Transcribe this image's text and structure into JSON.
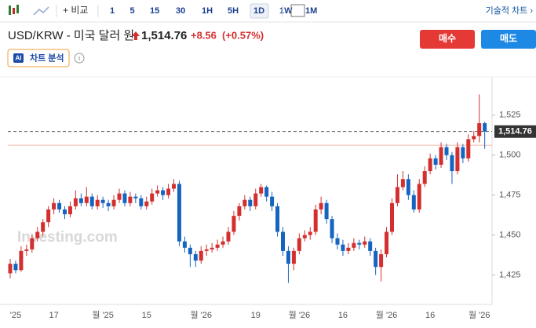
{
  "toolbar": {
    "compare": "+ 비교",
    "intervals": [
      "1",
      "5",
      "15",
      "30",
      "1H",
      "5H",
      "1D",
      "1W",
      "1M"
    ],
    "active_interval": "1D",
    "technical": "기술적 차트 ›"
  },
  "header": {
    "title": "USD/KRW - 미국 달러 원",
    "change": "+8.56",
    "change_pct": "(+0.57%)",
    "buy": "매수",
    "sell": "매도",
    "ai_badge": "AI",
    "analysis": "차트 분석"
  },
  "watermark": "Investing.com",
  "chart_data": {
    "type": "candlestick",
    "up_color": "#d32f2f",
    "down_color": "#1565c0",
    "ylim": [
      1408,
      1548
    ],
    "yticks": [
      {
        "value": 1425,
        "label": "1,425"
      },
      {
        "value": 1450,
        "label": "1,450"
      },
      {
        "value": 1475,
        "label": "1,475"
      },
      {
        "value": 1500,
        "label": "1,500"
      },
      {
        "value": 1525,
        "label": "1,525"
      }
    ],
    "last_price": {
      "value": 1514.76,
      "label": "1,514.76"
    },
    "prev_close": 1506.2,
    "categories": [
      null,
      "'25",
      null,
      null,
      null,
      null,
      null,
      null,
      "17",
      null,
      null,
      null,
      null,
      null,
      null,
      null,
      null,
      "월 '25",
      null,
      null,
      null,
      null,
      null,
      null,
      null,
      "15",
      null,
      null,
      null,
      null,
      null,
      null,
      null,
      null,
      null,
      "월 '26",
      null,
      null,
      null,
      null,
      null,
      null,
      null,
      null,
      null,
      "19",
      null,
      null,
      null,
      null,
      null,
      null,
      null,
      "월 '26",
      null,
      null,
      null,
      null,
      null,
      null,
      null,
      "16",
      null,
      null,
      null,
      null,
      null,
      null,
      null,
      "월 '26",
      null,
      null,
      null,
      null,
      null,
      null,
      null,
      "16",
      null,
      null,
      null,
      null,
      null,
      null,
      null,
      null,
      "월 '26",
      null
    ],
    "ohlc": [
      [
        1426,
        1435,
        1423,
        1432
      ],
      [
        1432,
        1434,
        1426,
        1428
      ],
      [
        1428,
        1443,
        1427,
        1440
      ],
      [
        1440,
        1444,
        1437,
        1441
      ],
      [
        1441,
        1450,
        1439,
        1448
      ],
      [
        1448,
        1455,
        1446,
        1452
      ],
      [
        1452,
        1460,
        1449,
        1458
      ],
      [
        1458,
        1468,
        1455,
        1466
      ],
      [
        1466,
        1473,
        1463,
        1470
      ],
      [
        1470,
        1472,
        1464,
        1466
      ],
      [
        1466,
        1468,
        1460,
        1463
      ],
      [
        1463,
        1471,
        1461,
        1468
      ],
      [
        1468,
        1478,
        1466,
        1473
      ],
      [
        1473,
        1476,
        1468,
        1470
      ],
      [
        1470,
        1480,
        1468,
        1474
      ],
      [
        1474,
        1476,
        1466,
        1468
      ],
      [
        1468,
        1475,
        1466,
        1472
      ],
      [
        1472,
        1474,
        1467,
        1470
      ],
      [
        1470,
        1472,
        1465,
        1468
      ],
      [
        1468,
        1475,
        1466,
        1472
      ],
      [
        1472,
        1479,
        1470,
        1476
      ],
      [
        1476,
        1478,
        1468,
        1470
      ],
      [
        1470,
        1477,
        1468,
        1474
      ],
      [
        1474,
        1476,
        1470,
        1473
      ],
      [
        1473,
        1475,
        1466,
        1468
      ],
      [
        1468,
        1474,
        1466,
        1471
      ],
      [
        1471,
        1479,
        1469,
        1476
      ],
      [
        1476,
        1481,
        1474,
        1478
      ],
      [
        1478,
        1480,
        1472,
        1475
      ],
      [
        1475,
        1482,
        1473,
        1479
      ],
      [
        1479,
        1485,
        1477,
        1482
      ],
      [
        1482,
        1484,
        1443,
        1446
      ],
      [
        1446,
        1449,
        1439,
        1442
      ],
      [
        1442,
        1444,
        1430,
        1438
      ],
      [
        1438,
        1440,
        1430,
        1434
      ],
      [
        1434,
        1443,
        1432,
        1440
      ],
      [
        1440,
        1444,
        1437,
        1441
      ],
      [
        1441,
        1445,
        1439,
        1442
      ],
      [
        1442,
        1447,
        1440,
        1444
      ],
      [
        1444,
        1449,
        1442,
        1446
      ],
      [
        1446,
        1455,
        1444,
        1452
      ],
      [
        1452,
        1465,
        1450,
        1462
      ],
      [
        1462,
        1470,
        1459,
        1468
      ],
      [
        1468,
        1475,
        1466,
        1472
      ],
      [
        1472,
        1474,
        1465,
        1468
      ],
      [
        1468,
        1479,
        1466,
        1476
      ],
      [
        1476,
        1482,
        1474,
        1480
      ],
      [
        1480,
        1481,
        1471,
        1474
      ],
      [
        1474,
        1477,
        1465,
        1468
      ],
      [
        1468,
        1470,
        1449,
        1452
      ],
      [
        1452,
        1455,
        1437,
        1440
      ],
      [
        1440,
        1443,
        1420,
        1432
      ],
      [
        1432,
        1442,
        1428,
        1440
      ],
      [
        1440,
        1451,
        1438,
        1448
      ],
      [
        1448,
        1453,
        1446,
        1450
      ],
      [
        1450,
        1455,
        1447,
        1452
      ],
      [
        1452,
        1469,
        1450,
        1466
      ],
      [
        1466,
        1474,
        1463,
        1470
      ],
      [
        1470,
        1472,
        1457,
        1460
      ],
      [
        1460,
        1462,
        1445,
        1448
      ],
      [
        1448,
        1451,
        1441,
        1444
      ],
      [
        1444,
        1447,
        1437,
        1440
      ],
      [
        1440,
        1445,
        1438,
        1442
      ],
      [
        1442,
        1448,
        1440,
        1445
      ],
      [
        1445,
        1447,
        1441,
        1444
      ],
      [
        1444,
        1449,
        1442,
        1446
      ],
      [
        1446,
        1448,
        1437,
        1440
      ],
      [
        1440,
        1442,
        1425,
        1430
      ],
      [
        1430,
        1441,
        1421,
        1438
      ],
      [
        1438,
        1455,
        1436,
        1452
      ],
      [
        1452,
        1473,
        1450,
        1470
      ],
      [
        1470,
        1488,
        1468,
        1480
      ],
      [
        1480,
        1490,
        1478,
        1485
      ],
      [
        1485,
        1488,
        1472,
        1475
      ],
      [
        1475,
        1478,
        1464,
        1466
      ],
      [
        1466,
        1485,
        1464,
        1482
      ],
      [
        1482,
        1493,
        1480,
        1490
      ],
      [
        1490,
        1501,
        1488,
        1498
      ],
      [
        1498,
        1500,
        1491,
        1494
      ],
      [
        1494,
        1508,
        1492,
        1505
      ],
      [
        1505,
        1507,
        1497,
        1500
      ],
      [
        1500,
        1502,
        1482,
        1490
      ],
      [
        1490,
        1508,
        1488,
        1505
      ],
      [
        1505,
        1507,
        1495,
        1498
      ],
      [
        1498,
        1513,
        1496,
        1510
      ],
      [
        1510,
        1515,
        1508,
        1512
      ],
      [
        1512,
        1538,
        1508,
        1520
      ],
      [
        1520,
        1521,
        1504,
        1514.76
      ]
    ]
  }
}
